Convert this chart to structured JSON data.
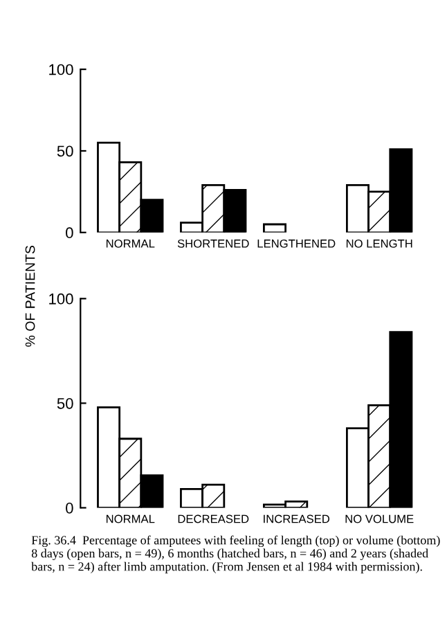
{
  "chart_data": [
    {
      "type": "bar",
      "ylabel": "% OF PATIENTS",
      "categories": [
        "NORMAL",
        "SHORTENED",
        "LENGTHENED",
        "NO LENGTH"
      ],
      "series": [
        {
          "color": "#ffffff",
          "values": [
            55,
            6,
            5,
            29
          ]
        },
        {
          "color": "#ffffff",
          "values": [
            43,
            29,
            0,
            25
          ]
        },
        {
          "color": "#000000",
          "values": [
            20,
            26,
            0,
            51
          ]
        }
      ],
      "ylim": [
        0,
        100
      ],
      "yticks": [
        0,
        50,
        100
      ],
      "grid": false,
      "legend": false
    },
    {
      "type": "bar",
      "categories": [
        "NORMAL",
        "DECREASED",
        "INCREASED",
        "NO VOLUME"
      ],
      "series": [
        {
          "color": "#ffffff",
          "values": [
            48,
            9,
            1.5,
            38
          ]
        },
        {
          "color": "#ffffff",
          "values": [
            33,
            11,
            3,
            49
          ]
        },
        {
          "color": "#000000",
          "values": [
            15.5,
            0,
            0,
            84
          ]
        }
      ],
      "ylim": [
        0,
        100
      ],
      "yticks": [
        0,
        50,
        100
      ],
      "grid": false,
      "legend": false,
      "annotations": [
        "Fig. 36.4  Percentage of amputees with feeling of length (top) or volume (bottom) 8 days (open bars, n = 49), 6 months (hatched bars, n = 46) and 2 years (shaded bars, n = 24) after limb amputation. (From Jensen et al 1984 with permission)."
      ]
    }
  ]
}
